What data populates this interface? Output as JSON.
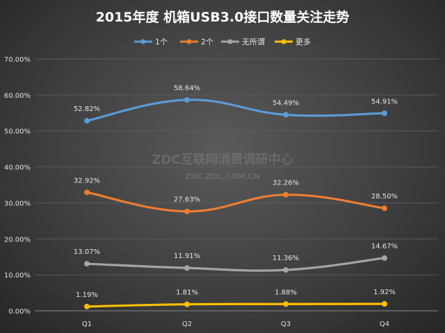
{
  "chart_data": {
    "type": "line",
    "title": "2015年度 机箱USB3.0接口数量关注走势",
    "categories": [
      "Q1",
      "Q2",
      "Q3",
      "Q4"
    ],
    "series": [
      {
        "name": "1个",
        "color": "#5b9bd5",
        "values": [
          52.82,
          58.64,
          54.49,
          54.91
        ],
        "labels": [
          "52.82%",
          "58.64%",
          "54.49%",
          "54.91%"
        ]
      },
      {
        "name": "2个",
        "color": "#ed7d31",
        "values": [
          32.92,
          27.63,
          32.26,
          28.5
        ],
        "labels": [
          "32.92%",
          "27.63%",
          "32.26%",
          "28.50%"
        ]
      },
      {
        "name": "无所谓",
        "color": "#a5a5a5",
        "values": [
          13.07,
          11.91,
          11.36,
          14.67
        ],
        "labels": [
          "13.07%",
          "11.91%",
          "11.36%",
          "14.67%"
        ]
      },
      {
        "name": "更多",
        "color": "#ffc000",
        "values": [
          1.19,
          1.81,
          1.88,
          1.92
        ],
        "labels": [
          "1.19%",
          "1.81%",
          "1.88%",
          "1.92%"
        ]
      }
    ],
    "yticks": [
      "0.00%",
      "10.00%",
      "20.00%",
      "30.00%",
      "40.00%",
      "50.00%",
      "60.00%",
      "70.00%"
    ],
    "ylim": [
      0,
      70
    ],
    "grid": true,
    "legend_position": "top-center",
    "smooth": true
  },
  "watermark": {
    "main": "ZDC互联网消费调研中心",
    "sub": "ZDC.ZOL.COM.CN"
  }
}
